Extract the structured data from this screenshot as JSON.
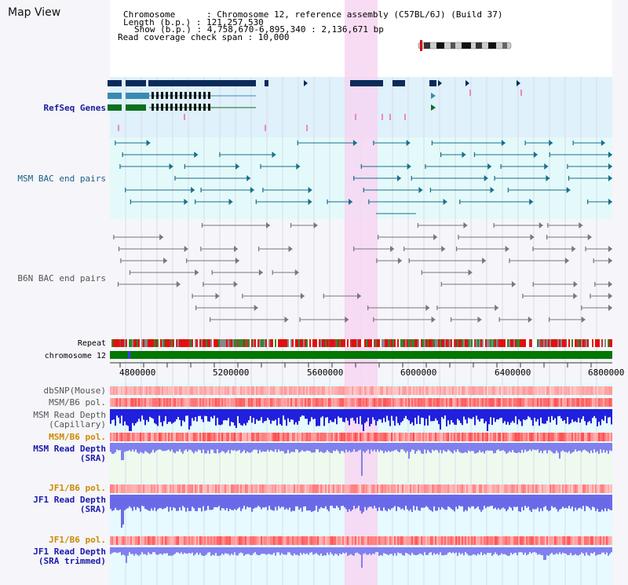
{
  "title": "Map View",
  "info": {
    "chromosome": "Chromosome      : Chromosome 12, reference assembly (C57BL/6J) (Build 37)",
    "length": "Length (b.p.) : 121,257,530",
    "show": "Show (b.p.) : 4,758,670-6,895,340 : 2,136,671 bp",
    "span": "Read coverage check span : 10,000"
  },
  "tracks": {
    "refseq": "RefSeq Genes",
    "msm_bac": "MSM BAC end pairs",
    "b6n_bac": "B6N BAC end pairs",
    "repeat": "Repeat",
    "chrom": "chromosome 12",
    "dbsnp": "dbSNP(Mouse)",
    "msm_b6_pol_1": "MSM/B6 pol.",
    "msm_depth_cap_1": "MSM Read Depth",
    "msm_depth_cap_2": "(Capillary)",
    "msm_b6_pol_2": "MSM/B6 pol.",
    "msm_depth_sra_1": "MSM Read Depth",
    "msm_depth_sra_2": "(SRA)",
    "jf1_pol_1": "JF1/B6 pol.",
    "jf1_depth_1": "JF1 Read Depth",
    "jf1_depth_2": "(SRA)",
    "jf1_pol_2": "JF1/B6 pol.",
    "jf1_trim_1": "JF1 Read Depth",
    "jf1_trim_2": "(SRA trimmed)"
  },
  "axis_ticks": [
    "4800000",
    "5200000",
    "5600000",
    "6000000",
    "6400000",
    "6800000"
  ],
  "colors": {
    "refseq_label": "#1a1a99",
    "msm_label": "#1a6080",
    "b6n_label": "#555555",
    "pol_label": "#cc8a00",
    "depth_label": "#1a1aaa",
    "highlight": "#f7d6f2",
    "chrom_bar": "#007700"
  }
}
